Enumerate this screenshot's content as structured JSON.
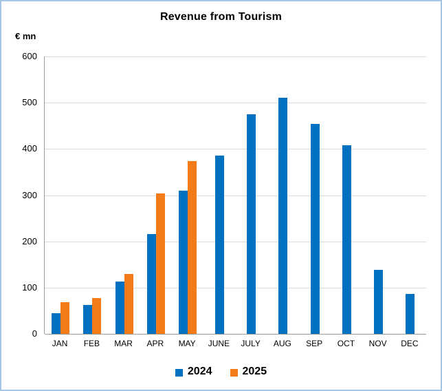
{
  "window": {
    "border_color": "#A3C6E8",
    "background_color": "#FFFFFF"
  },
  "chart_data": {
    "type": "bar",
    "title": "Revenue from Tourism",
    "ylabel": "€ mn",
    "xlabel": "",
    "categories": [
      "JAN",
      "FEB",
      "MAR",
      "APR",
      "MAY",
      "JUNE",
      "JULY",
      "AUG",
      "SEP",
      "OCT",
      "NOV",
      "DEC"
    ],
    "series": [
      {
        "name": "2024",
        "color": "#0070C0",
        "values": [
          45,
          63,
          113,
          216,
          310,
          385,
          475,
          511,
          454,
          408,
          139,
          86
        ]
      },
      {
        "name": "2025",
        "color": "#F57A18",
        "values": [
          68,
          78,
          129,
          304,
          373,
          null,
          null,
          null,
          null,
          null,
          null,
          null
        ]
      }
    ],
    "ylim": [
      0,
      600
    ],
    "yticks": [
      0,
      100,
      200,
      300,
      400,
      500,
      600
    ],
    "grid": true,
    "gridline_color": "#DCDCDC",
    "axis_line_color": "#9A9A9A",
    "legend_position": "bottom"
  }
}
